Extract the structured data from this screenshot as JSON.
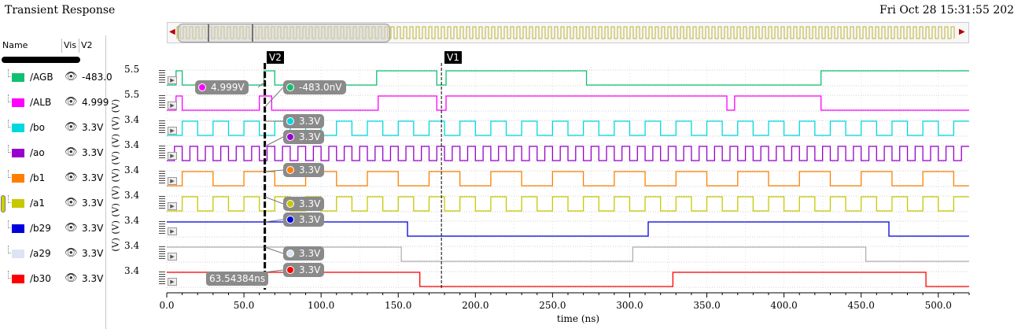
{
  "window": {
    "title": "Transient Response",
    "datetime": "Fri Oct 28 15:31:55 202"
  },
  "list_header": {
    "name": "Name",
    "vis": "Vis",
    "v2": "V2"
  },
  "signals": [
    {
      "name": "/AGB",
      "value": "-483.0",
      "color": "#10c070",
      "ylabel": "5.5",
      "unit": "(V)"
    },
    {
      "name": "/ALB",
      "value": "4.999",
      "color": "#ff00ff",
      "ylabel": "5.5",
      "unit": "(V)"
    },
    {
      "name": "/bo",
      "value": "3.3V",
      "color": "#00d8e0",
      "ylabel": "3.4",
      "unit": "(V)"
    },
    {
      "name": "/ao",
      "value": "3.3V",
      "color": "#9900cc",
      "ylabel": "3.4",
      "unit": "(V)"
    },
    {
      "name": "/b1",
      "value": "3.3V",
      "color": "#ff7f00",
      "ylabel": "3.4",
      "unit": "(V)"
    },
    {
      "name": "/a1",
      "value": "3.3V",
      "color": "#c8c800",
      "ylabel": "3.4",
      "unit": "(V)"
    },
    {
      "name": "/b29",
      "value": "3.3V",
      "color": "#0000dd",
      "ylabel": "3.4",
      "unit": "(V)"
    },
    {
      "name": "/a29",
      "value": "3.3V",
      "color": "#dde4f4",
      "ylabel": "3.4",
      "unit": "(V)"
    },
    {
      "name": "/b30",
      "value": "3.3V",
      "color": "#ff0000",
      "ylabel": "3.4",
      "unit": "(V)"
    }
  ],
  "icons": {
    "visibility": "eye-icon",
    "scroll_left": "arrow-left-icon",
    "scroll_right": "arrow-right-icon"
  },
  "axis": {
    "x_ticks": [
      "0.0",
      "50.0",
      "100.0",
      "150.0",
      "200.0",
      "250.0",
      "300.0",
      "350.0",
      "400.0",
      "450.0",
      "500.0"
    ],
    "x_label": "time (ns)",
    "x_range_ns": [
      0,
      520
    ]
  },
  "cursors": {
    "v2": {
      "label": "V2",
      "time_ns": 63.54,
      "time_readout": "63.54384ns"
    },
    "v1": {
      "label": "V1",
      "time_ns": 178
    }
  },
  "markers": [
    {
      "text": "4.999V",
      "color": "#ff00ff"
    },
    {
      "text": "-483.0nV",
      "color": "#10c070"
    },
    {
      "text": "3.3V",
      "color": "#00d8e0"
    },
    {
      "text": "3.3V",
      "color": "#9900cc"
    },
    {
      "text": "3.3V",
      "color": "#ff7f00"
    },
    {
      "text": "3.3V",
      "color": "#c8c800"
    },
    {
      "text": "3.3V",
      "color": "#0000dd"
    },
    {
      "text": "3.3V",
      "color": "#dde4f4"
    },
    {
      "text": "3.3V",
      "color": "#ff0000"
    }
  ],
  "waveforms": [
    {
      "kind": "edges",
      "start": 0,
      "edges": [
        6,
        10,
        63,
        70,
        136,
        175,
        181,
        272,
        424
      ]
    },
    {
      "kind": "edges",
      "start": 0,
      "edges": [
        6,
        10,
        60,
        68,
        137,
        175,
        181,
        363,
        368,
        424
      ]
    },
    {
      "kind": "clock",
      "period": 20,
      "offset": 10
    },
    {
      "kind": "clock",
      "period": 10,
      "offset": 5
    },
    {
      "kind": "clock",
      "period": 40,
      "offset": 10
    },
    {
      "kind": "clock",
      "period": 20,
      "offset": 10
    },
    {
      "kind": "edges",
      "start": 1,
      "edges": [
        156,
        312,
        468
      ]
    },
    {
      "kind": "edges",
      "start": 1,
      "edges": [
        152,
        302,
        453
      ]
    },
    {
      "kind": "edges",
      "start": 1,
      "edges": [
        164,
        328,
        492
      ]
    }
  ],
  "unit_column_text": "(V) (V) (V) (V) (V) (V) (V) (V) (V)"
}
